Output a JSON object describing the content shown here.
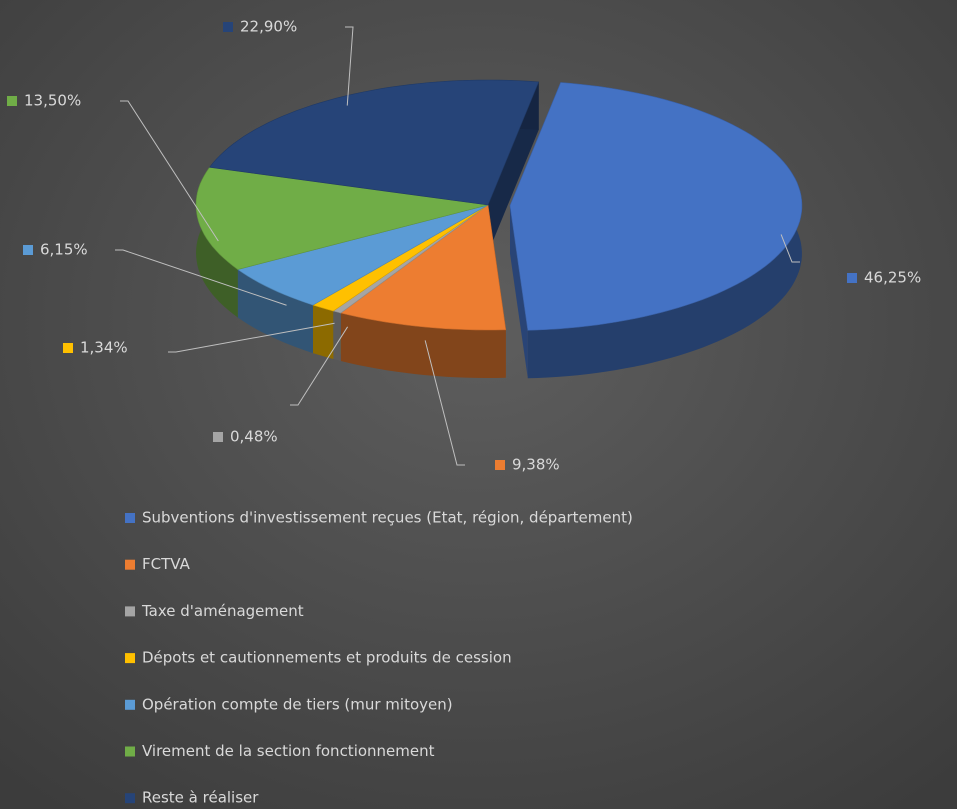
{
  "chart_data": {
    "type": "pie3d",
    "categories": [
      "Subventions d'investissement reçues (Etat, région, département)",
      "FCTVA",
      "Taxe d'aménagement",
      "Dépots et cautionnements et produits de cession",
      "Opération compte de tiers (mur mitoyen)",
      "Virement de la section fonctionnement",
      "Reste à réaliser"
    ],
    "values": [
      46.25,
      9.38,
      0.48,
      1.34,
      6.15,
      13.5,
      22.9
    ],
    "value_labels": [
      "46,25%",
      "9,38%",
      "0,48%",
      "1,34%",
      "6,15%",
      "13,50%",
      "22,90%"
    ],
    "colors": [
      "#4472c4",
      "#ed7d31",
      "#a5a5a5",
      "#ffc000",
      "#5b9bd5",
      "#70ad47",
      "#264478"
    ],
    "legend": "bottom"
  }
}
